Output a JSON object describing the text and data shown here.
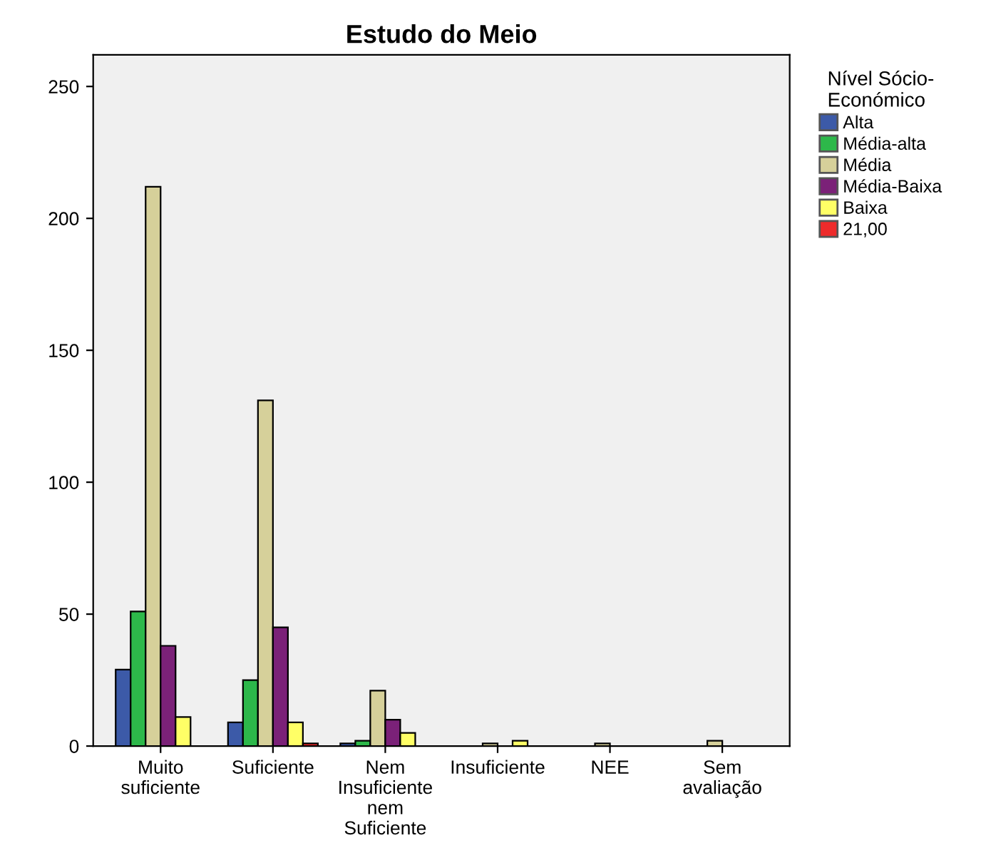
{
  "chart_data": {
    "type": "bar",
    "title": "Estudo do Meio",
    "legend_title": "Nível Sócio-\nEconómico",
    "categories": [
      "Muito\nsuficiente",
      "Suficiente",
      "Nem\nInsuficiente\nnem\nSuficiente",
      "Insuficiente",
      "NEE",
      "Sem\navaliação"
    ],
    "series": [
      {
        "name": "Alta",
        "color": "#3c5aa8",
        "values": [
          29,
          9,
          1,
          null,
          null,
          null
        ]
      },
      {
        "name": "Média-alta",
        "color": "#2db84a",
        "values": [
          51,
          25,
          2,
          null,
          null,
          null
        ]
      },
      {
        "name": "Média",
        "color": "#d6d09a",
        "values": [
          212,
          131,
          21,
          1,
          1,
          2
        ]
      },
      {
        "name": "Média-Baixa",
        "color": "#7b2178",
        "values": [
          38,
          45,
          10,
          null,
          null,
          null
        ]
      },
      {
        "name": "Baixa",
        "color": "#ffff66",
        "values": [
          11,
          9,
          5,
          2,
          null,
          null
        ]
      },
      {
        "name": "21,00",
        "color": "#ee2b2b",
        "values": [
          null,
          1,
          null,
          null,
          null,
          null
        ]
      }
    ],
    "ylim": [
      0,
      262
    ],
    "yticks": [
      0,
      50,
      100,
      150,
      200,
      250
    ],
    "grid": false,
    "legend": "right"
  }
}
